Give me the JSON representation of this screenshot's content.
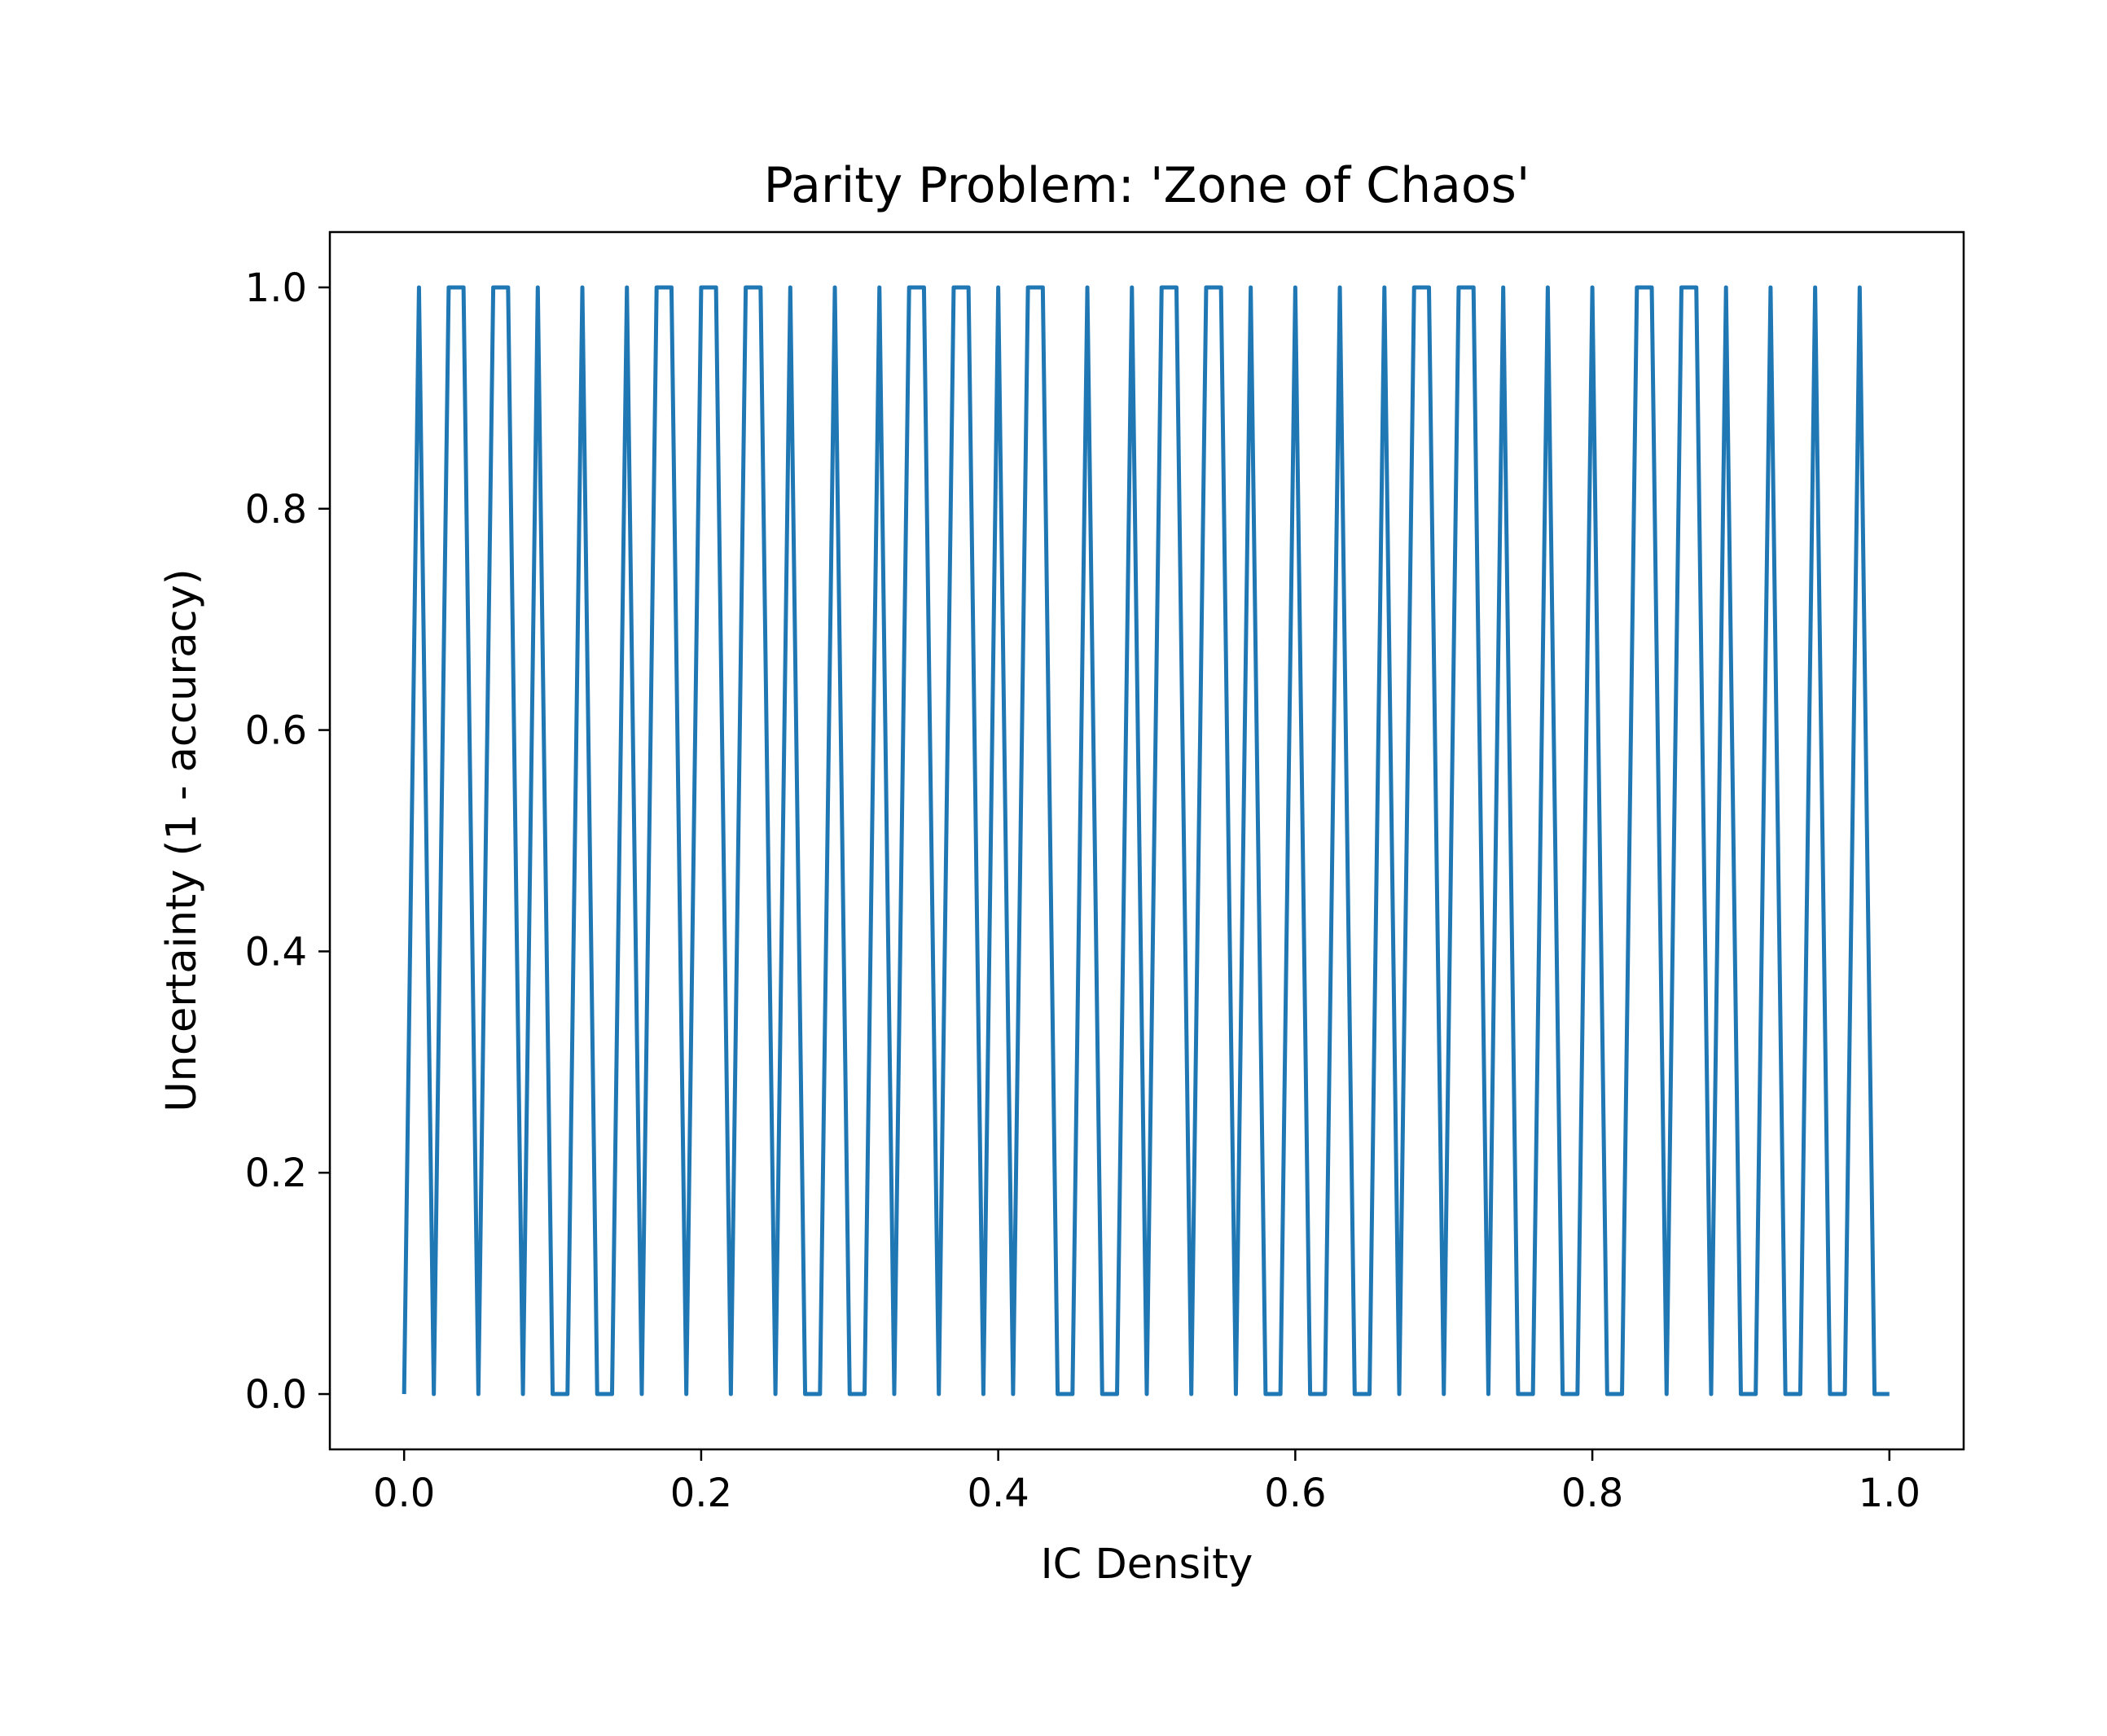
{
  "chart_data": {
    "type": "line",
    "title": "Parity Problem: 'Zone of Chaos'",
    "xlabel": "IC Density",
    "ylabel": "Uncertainty (1 - accuracy)",
    "xlim": [
      -0.05,
      1.05
    ],
    "ylim": [
      -0.05,
      1.05
    ],
    "xticks": [
      0.0,
      0.2,
      0.4,
      0.6,
      0.8,
      1.0
    ],
    "xtick_labels": [
      "0.0",
      "0.2",
      "0.4",
      "0.6",
      "0.8",
      "1.0"
    ],
    "yticks": [
      0.0,
      0.2,
      0.4,
      0.6,
      0.8,
      1.0
    ],
    "ytick_labels": [
      "0.0",
      "0.2",
      "0.4",
      "0.6",
      "0.8",
      "1.0"
    ],
    "grid": false,
    "line_color": "#1f77b4",
    "series": [
      {
        "name": "",
        "x": [
          0.0,
          0.01,
          0.02,
          0.03,
          0.04,
          0.05,
          0.06,
          0.07,
          0.08,
          0.09,
          0.1,
          0.11,
          0.12,
          0.13,
          0.14,
          0.15,
          0.16,
          0.17,
          0.18,
          0.19,
          0.2,
          0.21,
          0.22,
          0.23,
          0.24,
          0.25,
          0.26,
          0.27,
          0.28,
          0.29,
          0.3,
          0.31,
          0.32,
          0.33,
          0.34,
          0.35,
          0.36,
          0.37,
          0.38,
          0.39,
          0.4,
          0.41,
          0.42,
          0.43,
          0.44,
          0.45,
          0.46,
          0.47,
          0.48,
          0.49,
          0.5,
          0.51,
          0.52,
          0.53,
          0.54,
          0.55,
          0.56,
          0.57,
          0.58,
          0.59,
          0.6,
          0.61,
          0.62,
          0.63,
          0.64,
          0.65,
          0.66,
          0.67,
          0.68,
          0.69,
          0.7,
          0.71,
          0.72,
          0.73,
          0.74,
          0.75,
          0.76,
          0.77,
          0.78,
          0.79,
          0.8,
          0.81,
          0.82,
          0.83,
          0.84,
          0.85,
          0.86,
          0.87,
          0.88,
          0.89,
          0.9,
          0.91,
          0.92,
          0.93,
          0.94,
          0.95,
          0.96,
          0.97,
          0.98,
          0.99,
          1.0
        ],
        "y": [
          0,
          1,
          0,
          1,
          1,
          0,
          1,
          1,
          0,
          1,
          0,
          0,
          1,
          0,
          0,
          1,
          0,
          1,
          1,
          0,
          1,
          1,
          0,
          1,
          1,
          0,
          1,
          0,
          0,
          1,
          0,
          0,
          1,
          0,
          1,
          1,
          0,
          1,
          1,
          0,
          1,
          0,
          1,
          1,
          0,
          0,
          1,
          0,
          0,
          1,
          0,
          1,
          1,
          0,
          1,
          1,
          0,
          1,
          0,
          0,
          1,
          0,
          0,
          1,
          0,
          0,
          1,
          0,
          1,
          1,
          0,
          1,
          1,
          0,
          1,
          0,
          0,
          1,
          0,
          0,
          1,
          0,
          0,
          1,
          1,
          0,
          1,
          1,
          0,
          1,
          0,
          0,
          1,
          0,
          0,
          1,
          0,
          0,
          1,
          0,
          0
        ]
      }
    ]
  }
}
